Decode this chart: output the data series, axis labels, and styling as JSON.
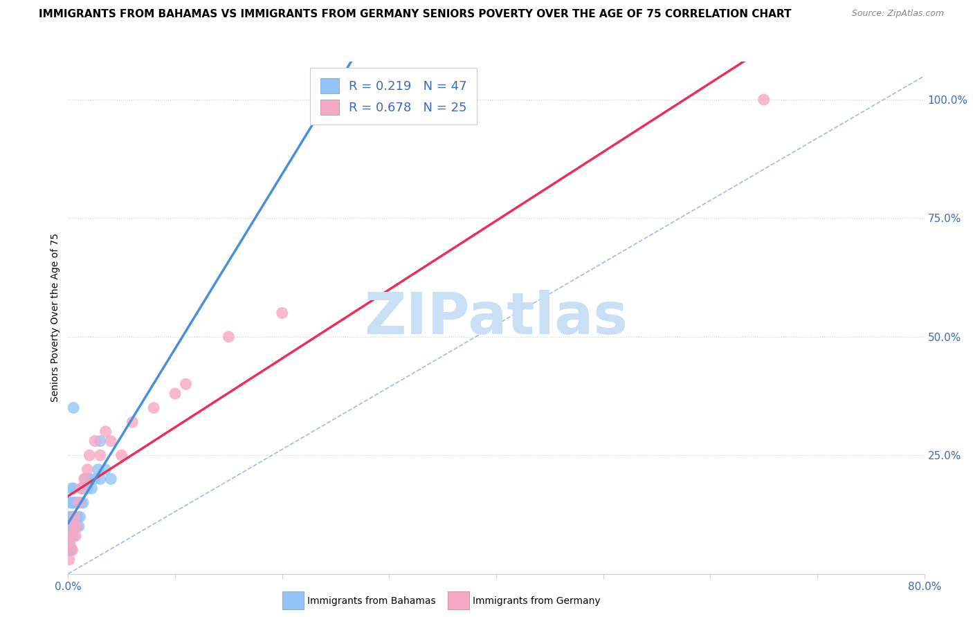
{
  "title": "IMMIGRANTS FROM BAHAMAS VS IMMIGRANTS FROM GERMANY SENIORS POVERTY OVER THE AGE OF 75 CORRELATION CHART",
  "source": "Source: ZipAtlas.com",
  "ylabel": "Seniors Poverty Over the Age of 75",
  "xlim": [
    0.0,
    0.8
  ],
  "ylim": [
    0.0,
    1.08
  ],
  "r_bahamas": 0.219,
  "n_bahamas": 47,
  "r_germany": 0.678,
  "n_germany": 25,
  "color_bahamas": "#92c5f7",
  "color_germany": "#f7a8c4",
  "line_color_bahamas": "#4a90d9",
  "line_color_germany": "#e8305a",
  "ref_line_color": "#7b9fd4",
  "watermark": "ZIPatlas",
  "watermark_color": "#c8dff5",
  "legend_color": "#3a6bc4",
  "grid_color": "#d0d0d0",
  "title_fontsize": 11,
  "tick_label_color": "#3a6bc4",
  "bahamas_x": [
    0.001,
    0.001,
    0.001,
    0.001,
    0.002,
    0.002,
    0.002,
    0.002,
    0.003,
    0.003,
    0.003,
    0.003,
    0.003,
    0.003,
    0.004,
    0.004,
    0.004,
    0.004,
    0.005,
    0.005,
    0.005,
    0.005,
    0.006,
    0.006,
    0.007,
    0.007,
    0.008,
    0.008,
    0.009,
    0.01,
    0.01,
    0.011,
    0.012,
    0.013,
    0.014,
    0.015,
    0.016,
    0.018,
    0.02,
    0.022,
    0.025,
    0.028,
    0.03,
    0.035,
    0.04,
    0.005,
    0.03
  ],
  "bahamas_y": [
    0.05,
    0.07,
    0.1,
    0.12,
    0.08,
    0.1,
    0.12,
    0.15,
    0.05,
    0.08,
    0.1,
    0.12,
    0.15,
    0.18,
    0.08,
    0.1,
    0.12,
    0.15,
    0.08,
    0.1,
    0.12,
    0.18,
    0.1,
    0.15,
    0.12,
    0.15,
    0.1,
    0.15,
    0.12,
    0.1,
    0.15,
    0.12,
    0.15,
    0.18,
    0.15,
    0.18,
    0.2,
    0.18,
    0.2,
    0.18,
    0.2,
    0.22,
    0.2,
    0.22,
    0.2,
    0.35,
    0.28
  ],
  "germany_x": [
    0.001,
    0.002,
    0.003,
    0.004,
    0.005,
    0.006,
    0.007,
    0.008,
    0.01,
    0.012,
    0.015,
    0.018,
    0.02,
    0.025,
    0.03,
    0.035,
    0.04,
    0.05,
    0.06,
    0.08,
    0.1,
    0.11,
    0.15,
    0.2,
    0.65
  ],
  "germany_y": [
    0.03,
    0.06,
    0.08,
    0.05,
    0.1,
    0.12,
    0.08,
    0.1,
    0.15,
    0.18,
    0.2,
    0.22,
    0.25,
    0.28,
    0.25,
    0.3,
    0.28,
    0.25,
    0.32,
    0.35,
    0.38,
    0.4,
    0.5,
    0.55,
    1.0
  ]
}
